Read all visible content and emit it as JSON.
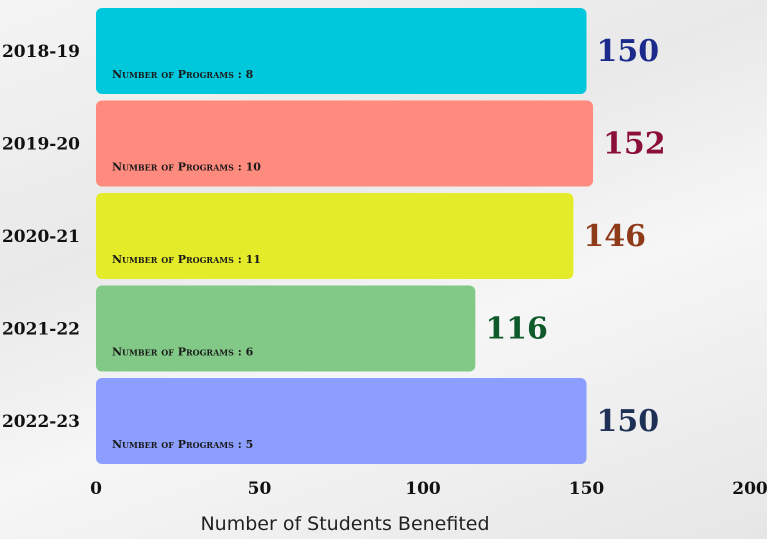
{
  "chart_data": {
    "type": "bar",
    "orientation": "horizontal",
    "categories": [
      "2018-19",
      "2019-20",
      "2020-21",
      "2021-22",
      "2022-23"
    ],
    "values": [
      150,
      152,
      146,
      116,
      150
    ],
    "programs_label": "Number of Programs :",
    "programs": [
      "8",
      "10",
      "11",
      "6",
      "5"
    ],
    "xlabel": "Number of Students Benefited",
    "xlim": [
      0,
      200
    ],
    "xticks": [
      0,
      50,
      100,
      150,
      200
    ],
    "colors": [
      "#00c8dc",
      "#ff8a7e",
      "#e4eb29",
      "#82c988",
      "#8c9eff"
    ],
    "value_label_colors": [
      "#1c2a8c",
      "#8c0f3a",
      "#8f3b1a",
      "#0f5a2a",
      "#1e3056"
    ]
  }
}
